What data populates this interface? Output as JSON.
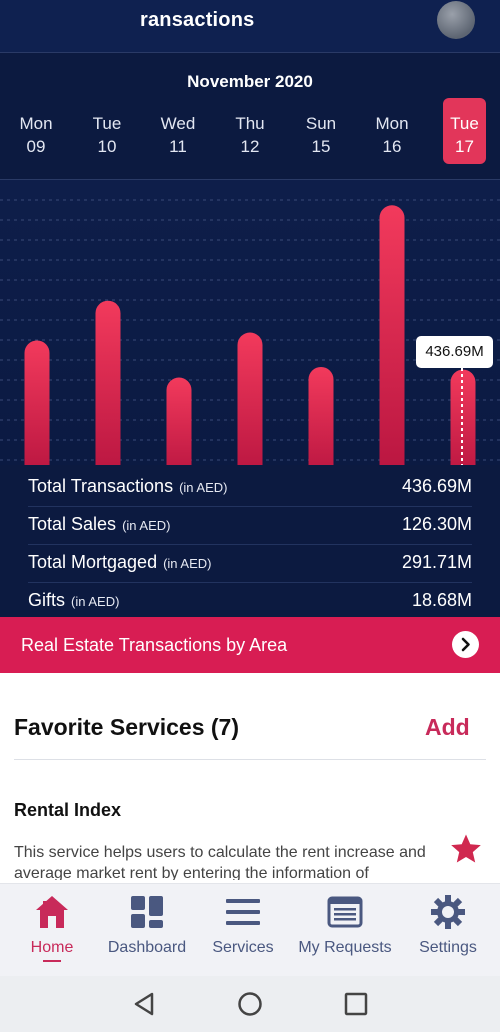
{
  "header": {
    "title": "ransactions"
  },
  "calendar": {
    "month": "November 2020",
    "days": [
      {
        "dow": "Mon",
        "date": "09",
        "selected": false
      },
      {
        "dow": "Tue",
        "date": "10",
        "selected": false
      },
      {
        "dow": "Wed",
        "date": "11",
        "selected": false
      },
      {
        "dow": "Thu",
        "date": "12",
        "selected": false
      },
      {
        "dow": "Sun",
        "date": "15",
        "selected": false
      },
      {
        "dow": "Mon",
        "date": "16",
        "selected": false
      },
      {
        "dow": "Tue",
        "date": "17",
        "selected": true
      }
    ]
  },
  "chart_data": {
    "type": "bar",
    "categories": [
      "09",
      "10",
      "11",
      "12",
      "15",
      "16",
      "17"
    ],
    "values": [
      0.47,
      0.62,
      0.33,
      0.5,
      0.37,
      0.98,
      0.36
    ],
    "value_unit": "relative height (no axis printed)",
    "tooltip": "436.69M",
    "bar_color": "#e8284f"
  },
  "stats": [
    {
      "label": "Total Transactions",
      "unit": "(in AED)",
      "value": "436.69M"
    },
    {
      "label": "Total Sales",
      "unit": "(in AED)",
      "value": "126.30M"
    },
    {
      "label": "Total Mortgaged",
      "unit": "(in AED)",
      "value": "291.71M"
    },
    {
      "label": "Gifts",
      "unit": "(in AED)",
      "value": "18.68M"
    }
  ],
  "banner": {
    "label": "Real Estate Transactions by Area",
    "icon": "chevron-right-icon"
  },
  "favorites": {
    "title": "Favorite Services (7)",
    "add_label": "Add",
    "service": {
      "title": "Rental Index",
      "description": "This service helps users to calculate the rent increase and average market rent by entering the information of",
      "icon": "star-icon"
    }
  },
  "nav": [
    {
      "label": "Home",
      "icon": "home-icon",
      "active": true
    },
    {
      "label": "Dashboard",
      "icon": "dashboard-icon",
      "active": false
    },
    {
      "label": "Services",
      "icon": "menu-icon",
      "active": false
    },
    {
      "label": "My Requests",
      "icon": "requests-icon",
      "active": false
    },
    {
      "label": "Settings",
      "icon": "gear-icon",
      "active": false
    }
  ],
  "colors": {
    "accent": "#d81d53",
    "navy": "#0c1a40"
  }
}
